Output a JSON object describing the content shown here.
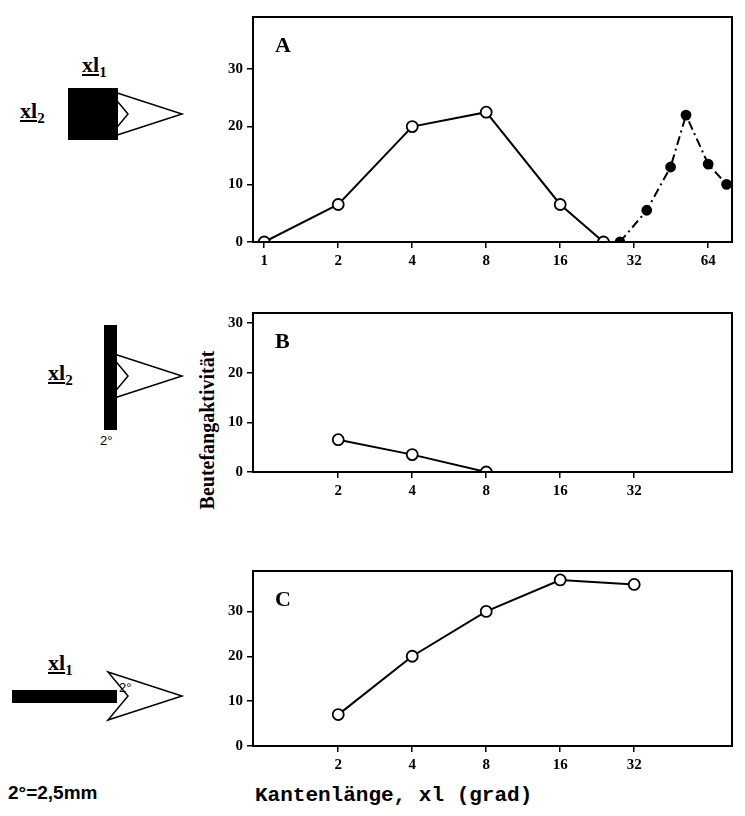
{
  "chart_data": [
    {
      "type": "line",
      "label": "A",
      "log": "x",
      "grid": false,
      "xlim": [
        0.9,
        80
      ],
      "xticks": [
        1,
        2,
        4,
        8,
        16,
        32,
        64
      ],
      "ylim": [
        0,
        39
      ],
      "yticks": [
        0,
        10,
        20,
        30
      ],
      "series": [
        {
          "color": "#000000",
          "marker": "open_circle",
          "line_style": "solid",
          "x": [
            1,
            2,
            4,
            8,
            16,
            24
          ],
          "values": [
            0,
            6.5,
            20,
            22.5,
            6.5,
            0
          ]
        },
        {
          "color": "#000000",
          "marker": "filled_circle",
          "line_style": "dashdot",
          "x": [
            28,
            36,
            45,
            52,
            64,
            76
          ],
          "values": [
            0,
            5.5,
            13,
            22,
            13.5,
            10
          ]
        }
      ]
    },
    {
      "type": "line",
      "label": "B",
      "log": "x",
      "grid": false,
      "xlim": [
        0.9,
        80
      ],
      "xticks": [
        2,
        4,
        8,
        16,
        32
      ],
      "ylim": [
        0,
        32
      ],
      "yticks": [
        0,
        10,
        20,
        30
      ],
      "series": [
        {
          "color": "#000000",
          "marker": "open_circle",
          "line_style": "solid",
          "x": [
            2,
            4,
            8
          ],
          "values": [
            6.5,
            3.5,
            0
          ]
        }
      ]
    },
    {
      "type": "line",
      "label": "C",
      "log": "x",
      "grid": false,
      "xlim": [
        0.9,
        80
      ],
      "xticks": [
        2,
        4,
        8,
        16,
        32
      ],
      "ylim": [
        0,
        39
      ],
      "yticks": [
        0,
        10,
        20,
        30
      ],
      "series": [
        {
          "color": "#000000",
          "marker": "open_circle",
          "line_style": "solid",
          "x": [
            2,
            4,
            8,
            16,
            32
          ],
          "values": [
            7,
            20,
            30,
            37,
            36
          ]
        }
      ]
    }
  ],
  "xlabel": "Kantenlänge, xl (grad)",
  "ylabel": "Beutefangaktivität",
  "note": "2°=2,5mm",
  "stimuli": [
    {
      "top": {
        "text": "xl",
        "sub": "1"
      },
      "left": {
        "text": "xl",
        "sub": "2"
      }
    },
    {
      "left": {
        "text": "xl",
        "sub": "2"
      },
      "bottom": "2°"
    },
    {
      "top": {
        "text": "xl",
        "sub": "1"
      },
      "right": "2°"
    }
  ]
}
